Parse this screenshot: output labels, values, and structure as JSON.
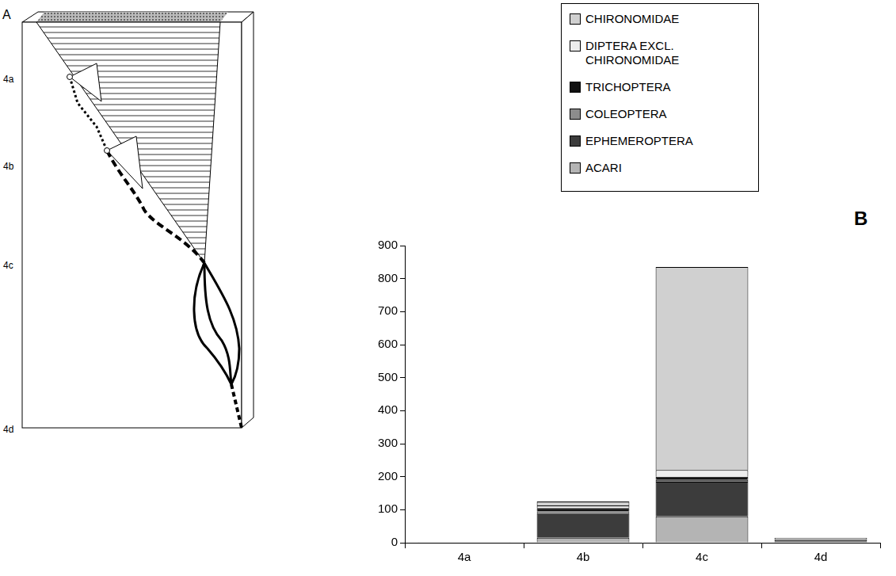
{
  "chart_data": {
    "type": "bar",
    "panel_label": "B",
    "categories": [
      "4a",
      "4b",
      "4c",
      "4d"
    ],
    "series": [
      {
        "name": "CHIRONOMIDAE",
        "color": "#d0d0d0",
        "values": [
          2,
          12,
          615,
          3
        ]
      },
      {
        "name": "DIPTERA EXCL. CHIRONOMIDAE",
        "color": "#ededed",
        "values": [
          0,
          8,
          20,
          2
        ]
      },
      {
        "name": "TRICHOPTERA",
        "color": "#111111",
        "values": [
          0,
          10,
          10,
          0
        ]
      },
      {
        "name": "COLEOPTERA",
        "color": "#8c8c8c",
        "values": [
          0,
          5,
          5,
          2
        ]
      },
      {
        "name": "EPHEMEROPTERA",
        "color": "#3c3c3c",
        "values": [
          0,
          75,
          105,
          5
        ]
      },
      {
        "name": "ACARI",
        "color": "#b4b4b4",
        "values": [
          0,
          15,
          80,
          3
        ]
      }
    ],
    "stacked": true,
    "legend": "top",
    "grid": false,
    "ylim": [
      0,
      900
    ],
    "yticks": [
      0,
      100,
      200,
      300,
      400,
      500,
      600,
      700,
      800,
      900
    ]
  },
  "diagram": {
    "panel_label": "A",
    "levels": [
      "4a",
      "4b",
      "4c",
      "4d"
    ]
  }
}
